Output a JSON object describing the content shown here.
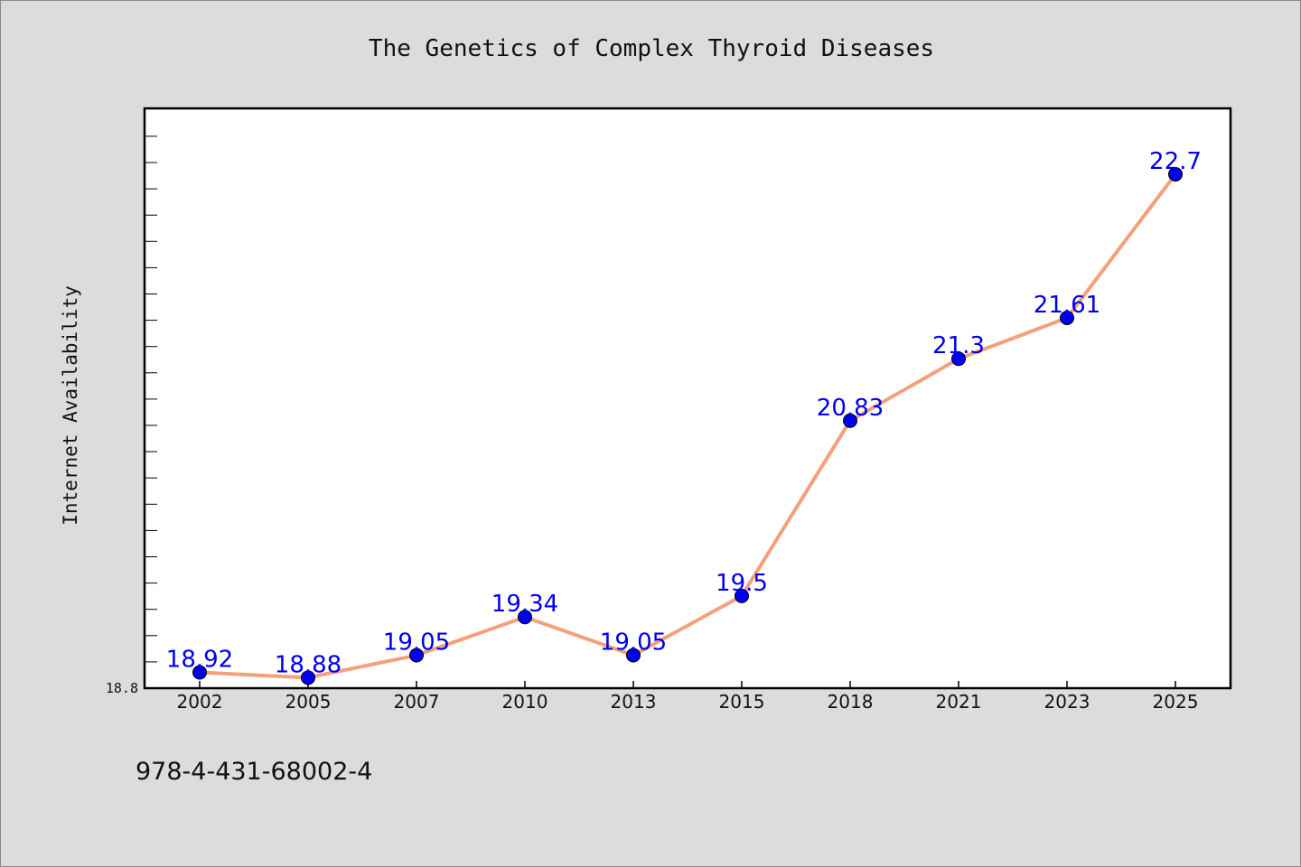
{
  "footer_text": "978-4-431-68002-4",
  "colors": {
    "background": "#dcdcdc",
    "line": "#f4a07a",
    "marker": "#0000ee",
    "label": "#0000ee"
  },
  "chart_data": {
    "type": "line",
    "title": "The Genetics of Complex Thyroid Diseases",
    "xlabel": "",
    "ylabel": "Internet Availability",
    "categories": [
      "2002",
      "2005",
      "2007",
      "2010",
      "2013",
      "2015",
      "2018",
      "2021",
      "2023",
      "2025"
    ],
    "series": [
      {
        "values": [
          18.92,
          18.88,
          19.05,
          19.34,
          19.05,
          19.5,
          20.83,
          21.3,
          21.61,
          22.7
        ]
      }
    ],
    "ylim": [
      18.8,
      23.2
    ],
    "ytick_labels": [
      "18.8"
    ],
    "grid": false,
    "legend": "none"
  }
}
